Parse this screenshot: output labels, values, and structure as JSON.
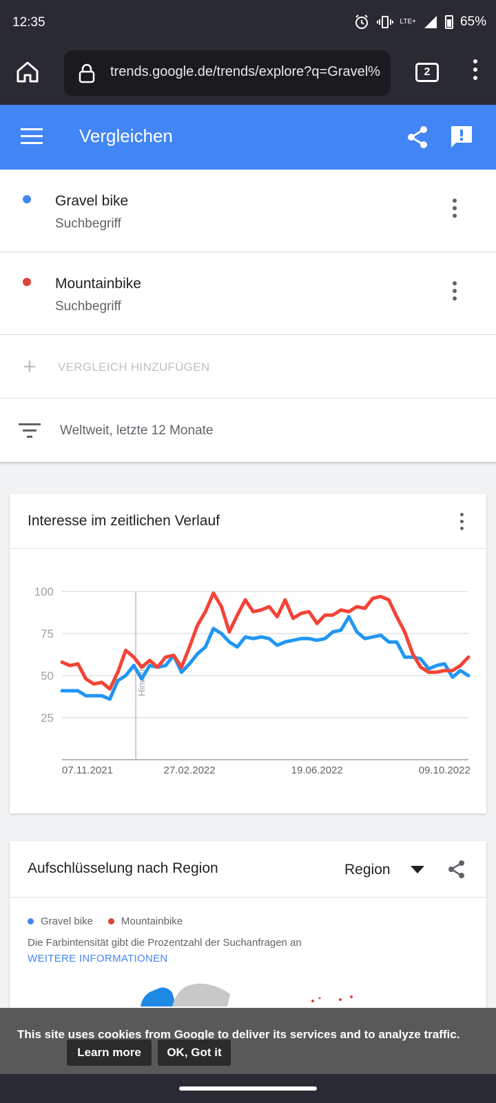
{
  "status_bar": {
    "time": "12:35",
    "network": "LTE+",
    "battery": "65%",
    "icons": [
      "alarm-icon",
      "vibrate-icon",
      "signal-icon",
      "battery-icon"
    ]
  },
  "browser": {
    "url": "trends.google.de/trends/explore?q=Gravel%",
    "tab_count": "2",
    "icons": [
      "home-icon",
      "lock-icon",
      "tabs-icon",
      "more-vert-icon"
    ]
  },
  "app_bar": {
    "title": "Vergleichen",
    "color": "#4285f4",
    "icons": [
      "menu-icon",
      "share-icon",
      "feedback-icon"
    ]
  },
  "terms": [
    {
      "name": "Gravel bike",
      "kind": "Suchbegriff",
      "color": "#4285f4"
    },
    {
      "name": "Mountainbike",
      "kind": "Suchbegriff",
      "color": "#db4437"
    }
  ],
  "add_compare_label": "VERGLEICH HINZUFÜGEN",
  "filter_label": "Weltweit, letzte 12 Monate",
  "interest_card": {
    "title": "Interesse im zeitlichen Verlauf",
    "note_label": "Hinweis"
  },
  "chart_data": {
    "type": "line",
    "title": "Interesse im zeitlichen Verlauf",
    "xlabel": "",
    "ylabel": "",
    "ylim": [
      0,
      100
    ],
    "y_ticks": [
      25,
      50,
      75,
      100
    ],
    "x_tick_labels": [
      "07.11.2021",
      "27.02.2022",
      "19.06.2022",
      "09.10.2022"
    ],
    "grid": true,
    "x": [
      "07.11.2021",
      "14.11.2021",
      "21.11.2021",
      "28.11.2021",
      "05.12.2021",
      "12.12.2021",
      "19.12.2021",
      "26.12.2021",
      "02.01.2022",
      "09.01.2022",
      "16.01.2022",
      "23.01.2022",
      "30.01.2022",
      "06.02.2022",
      "13.02.2022",
      "20.02.2022",
      "27.02.2022",
      "06.03.2022",
      "13.03.2022",
      "20.03.2022",
      "27.03.2022",
      "03.04.2022",
      "10.04.2022",
      "17.04.2022",
      "24.04.2022",
      "01.05.2022",
      "08.05.2022",
      "15.05.2022",
      "22.05.2022",
      "29.05.2022",
      "05.06.2022",
      "12.06.2022",
      "19.06.2022",
      "26.06.2022",
      "03.07.2022",
      "10.07.2022",
      "17.07.2022",
      "24.07.2022",
      "31.07.2022",
      "07.08.2022",
      "14.08.2022",
      "21.08.2022",
      "28.08.2022",
      "04.09.2022",
      "11.09.2022",
      "18.09.2022",
      "25.09.2022",
      "02.10.2022",
      "09.10.2022",
      "16.10.2022",
      "23.10.2022",
      "30.10.2022"
    ],
    "note_marker_x": "09.01.2022",
    "series": [
      {
        "name": "Gravel bike",
        "color": "#4285f4",
        "values": [
          41,
          41,
          41,
          38,
          38,
          38,
          36,
          47,
          50,
          56,
          48,
          56,
          55,
          56,
          62,
          52,
          57,
          63,
          67,
          78,
          75,
          70,
          67,
          73,
          72,
          73,
          72,
          68,
          70,
          71,
          72,
          72,
          71,
          72,
          76,
          77,
          85,
          76,
          72,
          73,
          74,
          70,
          70,
          61,
          61,
          60,
          54,
          56,
          57,
          49,
          53,
          50
        ]
      },
      {
        "name": "Mountainbike",
        "color": "#db4437",
        "values": [
          58,
          56,
          57,
          48,
          45,
          46,
          42,
          52,
          65,
          61,
          55,
          59,
          55,
          61,
          62,
          55,
          67,
          80,
          88,
          99,
          91,
          76,
          86,
          95,
          88,
          89,
          91,
          85,
          95,
          84,
          87,
          88,
          81,
          86,
          86,
          89,
          88,
          91,
          90,
          96,
          97,
          95,
          85,
          76,
          63,
          55,
          52,
          52,
          53,
          53,
          56,
          61
        ]
      }
    ]
  },
  "region_card": {
    "title": "Aufschlüsselung nach Region",
    "selector_value": "Region",
    "legend": [
      "Gravel bike",
      "Mountainbike"
    ],
    "note": "Die Farbintensität gibt die Prozentzahl der Suchanfragen an",
    "more_info": "WEITERE INFORMATIONEN"
  },
  "cookie_banner": {
    "message": "This site uses cookies from Google to deliver its services and to analyze traffic.",
    "learn_more": "Learn more",
    "ok": "OK, Got it"
  }
}
